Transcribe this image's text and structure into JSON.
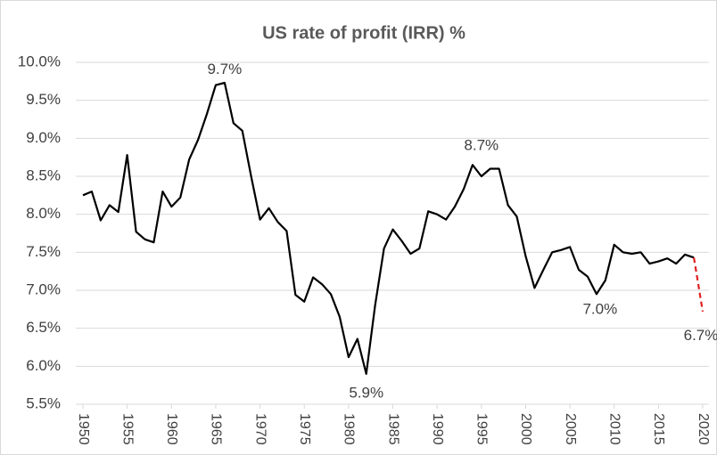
{
  "chart_data": {
    "type": "line",
    "title": "US rate of profit (IRR) %",
    "x": [
      1950,
      1951,
      1952,
      1953,
      1954,
      1955,
      1956,
      1957,
      1958,
      1959,
      1960,
      1961,
      1962,
      1963,
      1964,
      1965,
      1966,
      1967,
      1968,
      1969,
      1970,
      1971,
      1972,
      1973,
      1974,
      1975,
      1976,
      1977,
      1978,
      1979,
      1980,
      1981,
      1982,
      1983,
      1984,
      1985,
      1986,
      1987,
      1988,
      1989,
      1990,
      1991,
      1992,
      1993,
      1994,
      1995,
      1996,
      1997,
      1998,
      1999,
      2000,
      2001,
      2002,
      2003,
      2004,
      2005,
      2006,
      2007,
      2008,
      2009,
      2010,
      2011,
      2012,
      2013,
      2014,
      2015,
      2016,
      2017,
      2018,
      2019,
      2020
    ],
    "series": [
      {
        "color": "#000000",
        "values": [
          8.25,
          8.3,
          7.92,
          8.12,
          8.03,
          8.78,
          7.77,
          7.67,
          7.63,
          8.3,
          8.1,
          8.22,
          8.72,
          8.98,
          9.32,
          9.7,
          9.73,
          9.2,
          9.1,
          8.5,
          7.93,
          8.08,
          7.9,
          7.78,
          6.94,
          6.85,
          7.17,
          7.08,
          6.95,
          6.65,
          6.12,
          6.36,
          5.9,
          6.8,
          7.55,
          7.8,
          7.65,
          7.48,
          7.55,
          8.04,
          8.0,
          7.93,
          8.1,
          8.33,
          8.65,
          8.5,
          8.6,
          8.6,
          8.12,
          7.97,
          7.45,
          7.03,
          7.27,
          7.5,
          7.53,
          7.57,
          7.27,
          7.18,
          6.95,
          7.13,
          7.6,
          7.5,
          7.48,
          7.5,
          7.35,
          7.38,
          7.42,
          7.35,
          7.47,
          7.43,
          null
        ]
      },
      {
        "color": "#e02020",
        "dashed": true,
        "values": [
          null,
          null,
          null,
          null,
          null,
          null,
          null,
          null,
          null,
          null,
          null,
          null,
          null,
          null,
          null,
          null,
          null,
          null,
          null,
          null,
          null,
          null,
          null,
          null,
          null,
          null,
          null,
          null,
          null,
          null,
          null,
          null,
          null,
          null,
          null,
          null,
          null,
          null,
          null,
          null,
          null,
          null,
          null,
          null,
          null,
          null,
          null,
          null,
          null,
          null,
          null,
          null,
          null,
          null,
          null,
          null,
          null,
          null,
          null,
          null,
          null,
          null,
          null,
          null,
          null,
          null,
          null,
          null,
          null,
          7.43,
          6.72
        ]
      }
    ],
    "annotations": [
      {
        "text": "9.7%",
        "x": 1966,
        "y": 9.7
      },
      {
        "text": "8.7%",
        "x": 1995,
        "y": 8.7
      },
      {
        "text": "5.9%",
        "x": 1982,
        "y": 5.9
      },
      {
        "text": "7.0%",
        "x": 2008,
        "y": 7.0
      },
      {
        "text": "6.7%",
        "x": 2020,
        "y": 6.7
      }
    ],
    "xlim": [
      1950,
      2020
    ],
    "xticks": [
      1950,
      1955,
      1960,
      1965,
      1970,
      1975,
      1980,
      1985,
      1990,
      1995,
      2000,
      2005,
      2010,
      2015,
      2020
    ],
    "ylim": [
      5.5,
      10
    ],
    "yticks": [
      {
        "value": 5.5,
        "label": "5.5%"
      },
      {
        "value": 6,
        "label": "6.0%"
      },
      {
        "value": 6.5,
        "label": "6.5%"
      },
      {
        "value": 7,
        "label": "7.0%"
      },
      {
        "value": 7.5,
        "label": "7.5%"
      },
      {
        "value": 8,
        "label": "8.0%"
      },
      {
        "value": 8.5,
        "label": "8.5%"
      },
      {
        "value": 9,
        "label": "9.0%"
      },
      {
        "value": 9.5,
        "label": "9.5%"
      },
      {
        "value": 10,
        "label": "10.0%"
      }
    ],
    "grid": true
  }
}
